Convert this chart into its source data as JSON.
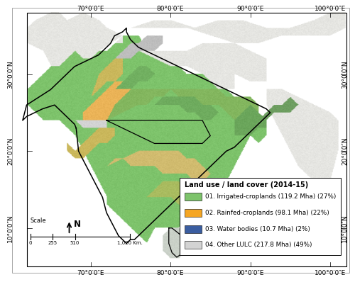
{
  "legend_title": "Land use / land cover (2014-15)",
  "legend_items": [
    {
      "label": "01. Irrigated-croplands (119.2 Mha) (27%)",
      "color": "#7dc36b"
    },
    {
      "label": "02. Rainfed-croplands (98.1 Mha) (22%)",
      "color": "#f5a623"
    },
    {
      "label": "03. Water bodies (10.7 Mha) (2%)",
      "color": "#3a5da0"
    },
    {
      "label": "04. Other LULC (217.8 Mha) (49%)",
      "color": "#d3d3d3"
    }
  ],
  "x_tick_labels": [
    "70°0′0″E",
    "80°0′0″E",
    "90°0′0″E",
    "100°0′0″E"
  ],
  "y_tick_labels": [
    "10°0′0″N",
    "20°0′0″N",
    "30°0′0″N"
  ],
  "scale_label": "Scale",
  "scale_ticks": [
    "0",
    "255",
    "510",
    "1,020 Km."
  ],
  "north_label": "N",
  "bg_color": "#ffffff",
  "map_bg_color": "#f5f5f0",
  "border_color": "#888888",
  "green": "#7dc36b",
  "orange": "#f5a623",
  "blue": "#3a5da0",
  "gray": "#d3d3d3",
  "dark": "#111111",
  "figure_width": 5.0,
  "figure_height": 3.98,
  "dpi": 100,
  "lon_min": 62,
  "lon_max": 102,
  "lat_min": 5,
  "lat_max": 38
}
